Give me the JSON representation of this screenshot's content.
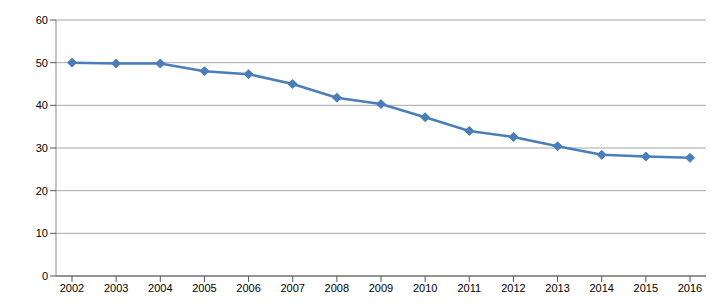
{
  "chart_data": {
    "type": "line",
    "categories": [
      "2002",
      "2003",
      "2004",
      "2005",
      "2006",
      "2007",
      "2008",
      "2009",
      "2010",
      "2011",
      "2012",
      "2013",
      "2014",
      "2015",
      "2016"
    ],
    "values": [
      50,
      49.8,
      49.8,
      48,
      47.3,
      45,
      41.8,
      40.3,
      37.2,
      34,
      32.6,
      30.4,
      28.4,
      28,
      27.7
    ],
    "color": "#4a7ebb",
    "marker": "diamond",
    "ylim": [
      0,
      60
    ],
    "yticks": [
      0,
      10,
      20,
      30,
      40,
      50,
      60
    ],
    "grid": true
  }
}
